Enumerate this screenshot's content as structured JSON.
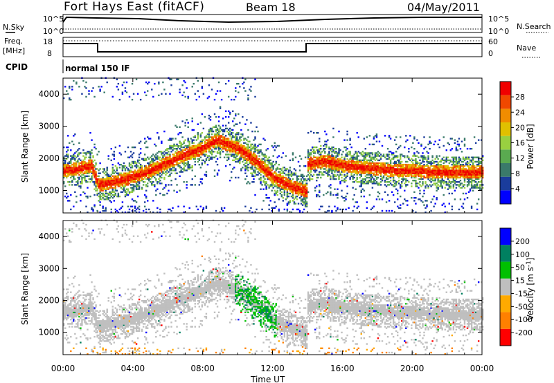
{
  "header": {
    "station": "Fort Hays East (fitACF)",
    "beam": "Beam 18",
    "date": "04/May/2011"
  },
  "top_panels": {
    "nsky_label": "N.Sky",
    "nsky_ticks": [
      "10^5",
      "10^0"
    ],
    "nsearch_label": "N.Search",
    "nsearch_ticks": [
      "10^5",
      "10^0"
    ],
    "freq_label": "Freq.",
    "freq_unit": "[MHz]",
    "freq_ticks": [
      "18",
      "8"
    ],
    "nave_label": "Nave",
    "nave_ticks": [
      "60",
      "0"
    ],
    "cpid_label": "CPID",
    "cpid_value": "normal 150 IF"
  },
  "colors": {
    "power": [
      "#0000ff",
      "#1a3c9c",
      "#3a7a6a",
      "#5aaa50",
      "#99d040",
      "#e0c000",
      "#f08c00",
      "#f04800",
      "#f00000"
    ],
    "velocity": [
      "#ff0000",
      "#ff8000",
      "#ffaa00",
      "#bfbfbf",
      "#00c000",
      "#008060",
      "#0000ff"
    ]
  },
  "chart_data": [
    {
      "type": "heatmap",
      "name": "power-panel",
      "ylabel": "Slant Range [km]",
      "ylim": [
        300,
        4500
      ],
      "yticks": [
        "1000",
        "2000",
        "3000",
        "4000"
      ],
      "xlim": [
        0,
        24
      ],
      "colorbar": {
        "label": "Power [dB]",
        "ticks": [
          "4",
          "8",
          "12",
          "16",
          "20",
          "24",
          "28"
        ],
        "range": [
          0,
          32
        ]
      },
      "echo_tracks_range_km": [
        {
          "t": [
            0,
            0.8,
            1.6,
            2,
            3,
            4,
            5,
            6,
            7,
            8,
            8.8,
            9.2,
            10,
            11,
            12,
            13,
            14
          ],
          "r": [
            1600,
            1650,
            1750,
            1150,
            1250,
            1400,
            1600,
            1850,
            2100,
            2300,
            2550,
            2450,
            2300,
            1900,
            1400,
            1100,
            950
          ]
        },
        {
          "t": [
            14,
            15,
            16,
            17,
            18,
            19,
            20,
            21,
            22,
            23,
            24
          ],
          "r": [
            1800,
            1900,
            1750,
            1700,
            1650,
            1600,
            1600,
            1550,
            1550,
            1550,
            1550
          ]
        }
      ]
    },
    {
      "type": "heatmap",
      "name": "velocity-panel",
      "ylabel": "Slant Range [km]",
      "ylim": [
        300,
        4500
      ],
      "yticks": [
        "1000",
        "2000",
        "3000",
        "4000"
      ],
      "xlim": [
        0,
        24
      ],
      "colorbar": {
        "label": "Velocity [m s^-1]",
        "ticks": [
          "200",
          "100",
          "50",
          "15",
          "-15",
          "-50",
          "-100",
          "-200"
        ]
      }
    }
  ],
  "xaxis": {
    "label": "Time UT",
    "ticks": [
      "00:00",
      "04:00",
      "08:00",
      "12:00",
      "16:00",
      "20:00",
      "00:00"
    ]
  }
}
